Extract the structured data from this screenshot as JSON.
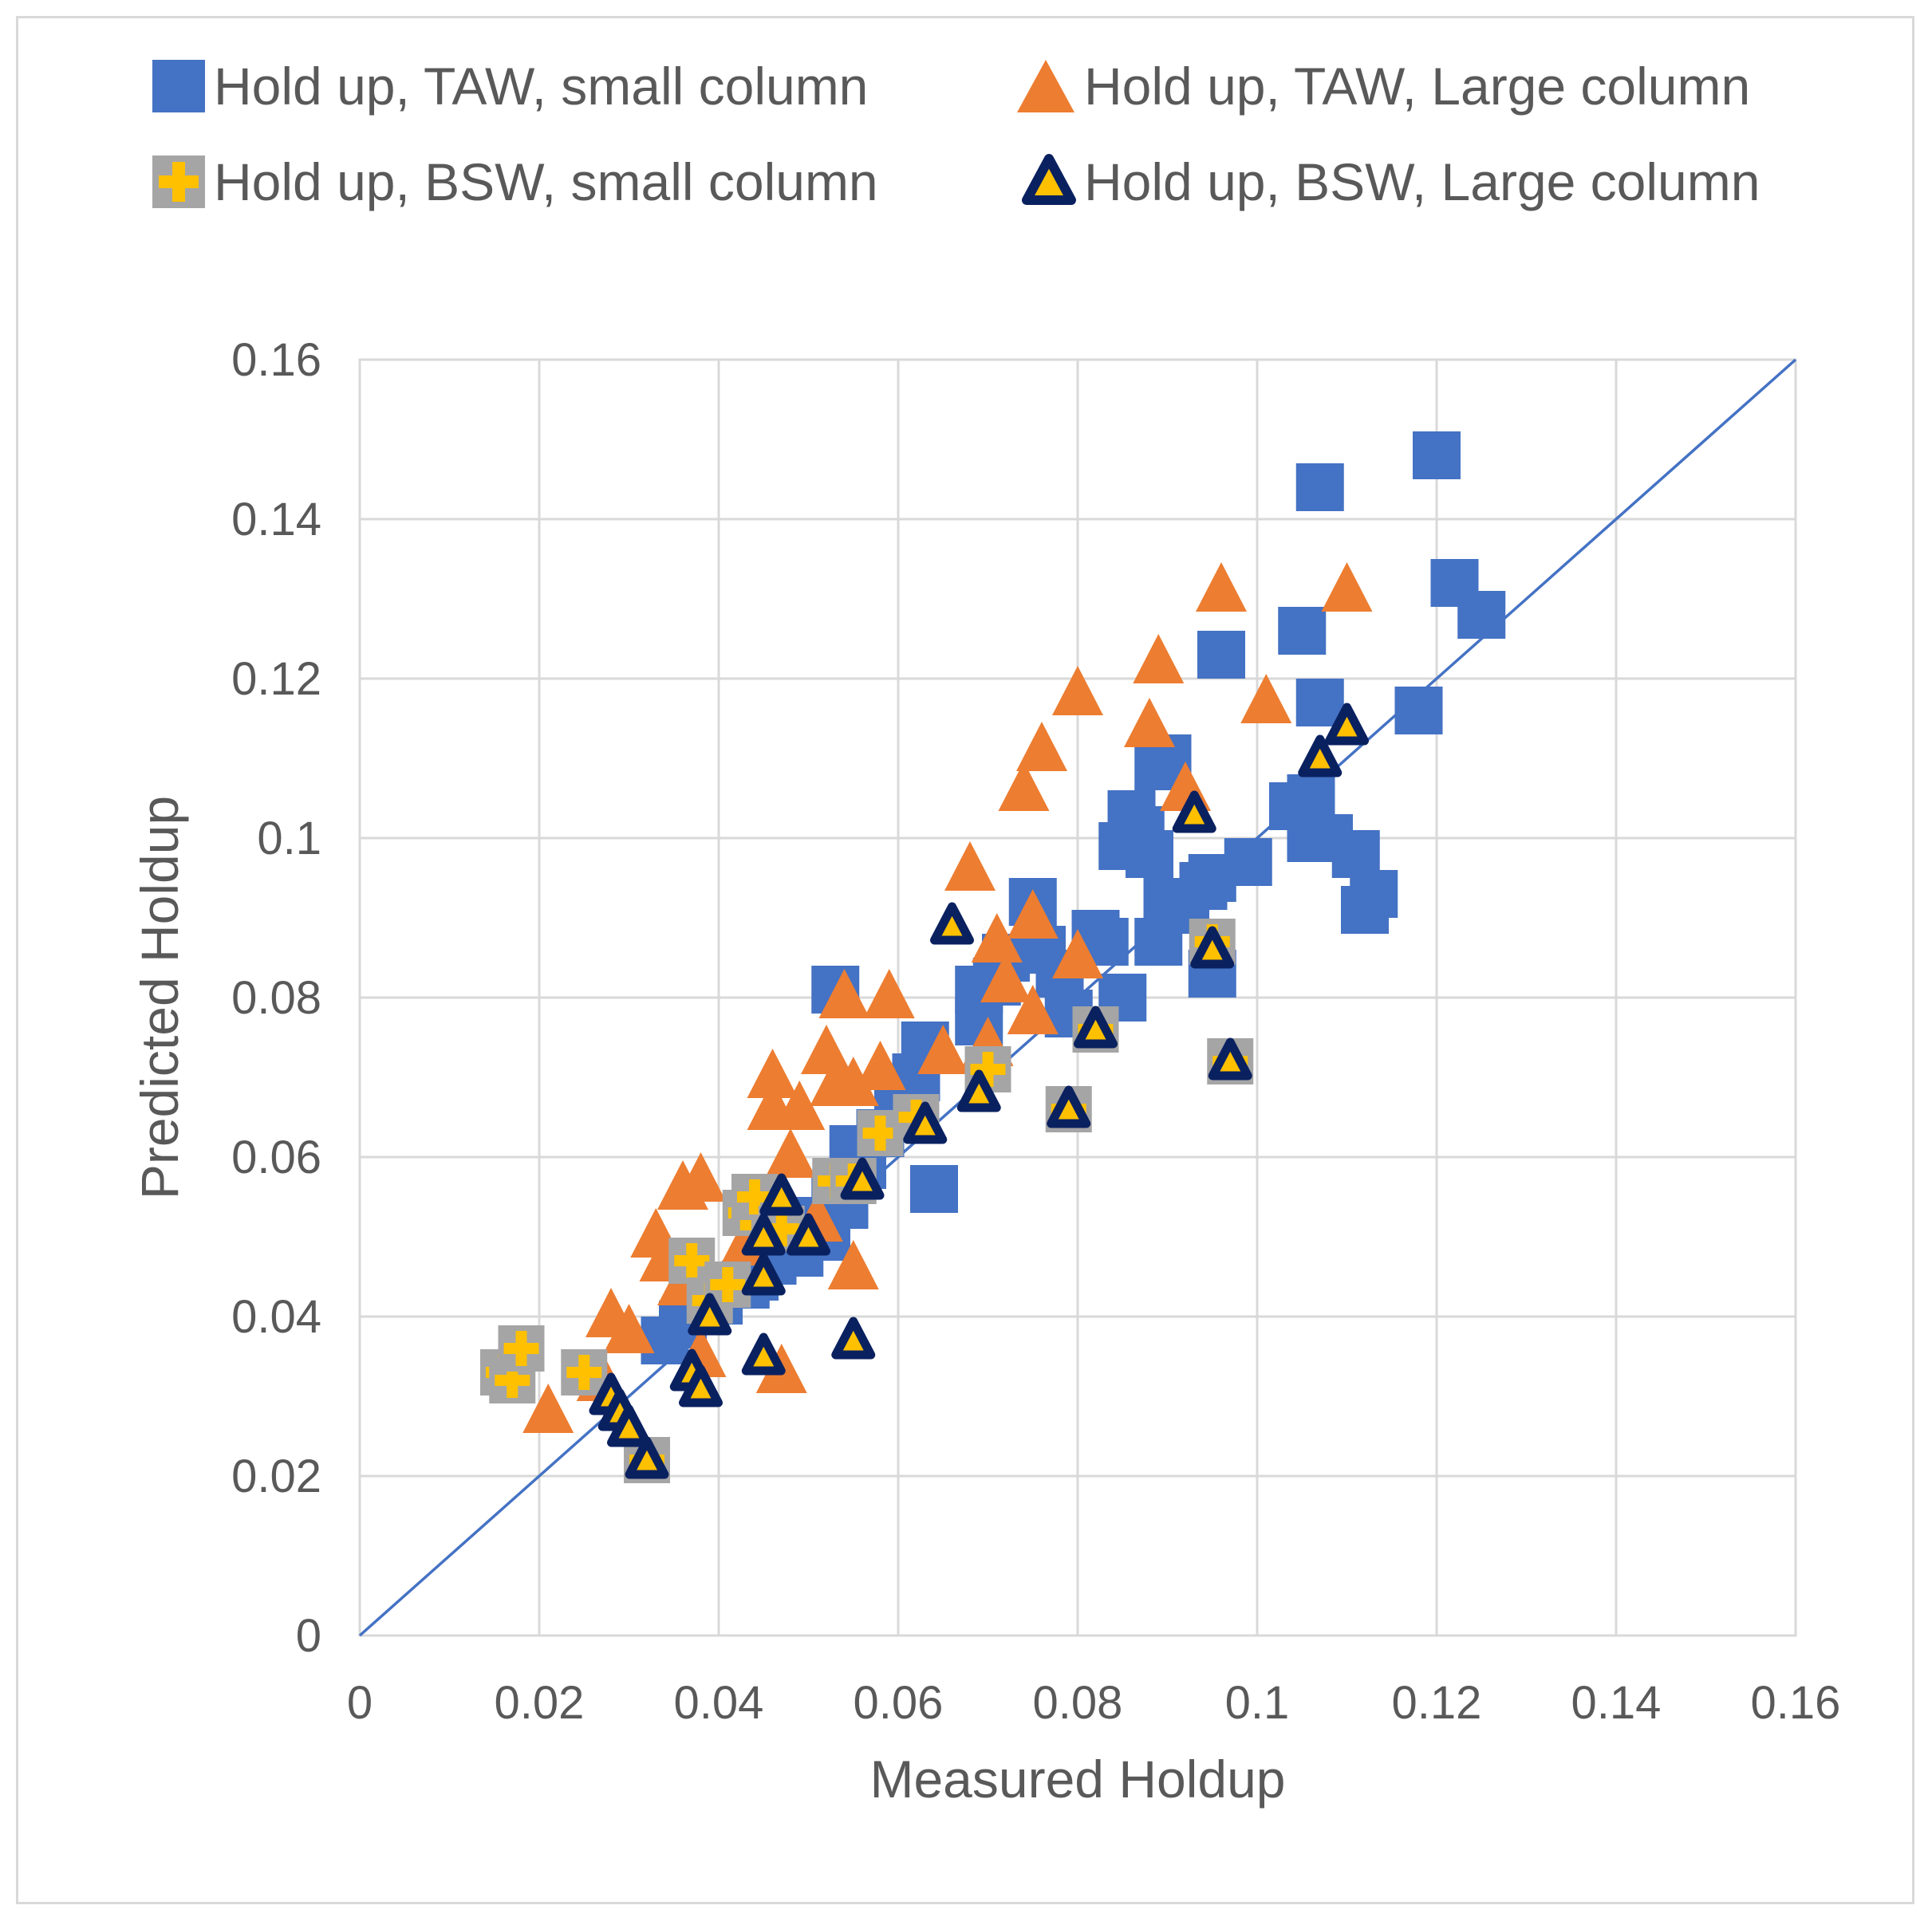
{
  "chart_data": {
    "type": "scatter",
    "title": "",
    "xlabel": "Measured  Holdup",
    "ylabel": "Predicted Holdup",
    "xlim": [
      0,
      0.16
    ],
    "ylim": [
      0,
      0.16
    ],
    "xticks": [
      "0",
      "0.02",
      "0.04",
      "0.06",
      "0.08",
      "0.1",
      "0.12",
      "0.14",
      "0.16"
    ],
    "yticks": [
      "0",
      "0.02",
      "0.04",
      "0.06",
      "0.08",
      "0.1",
      "0.12",
      "0.14",
      "0.16"
    ],
    "grid": true,
    "legend_position": "top",
    "reference_line": {
      "name": "y = x",
      "x": [
        0,
        0.16
      ],
      "y": [
        0,
        0.16
      ],
      "color": "#4472c4"
    },
    "series": [
      {
        "name": "Hold up, TAW, small column",
        "marker": "square",
        "color": "#4472c4",
        "points": [
          [
            0.034,
            0.037
          ],
          [
            0.036,
            0.039
          ],
          [
            0.04,
            0.042
          ],
          [
            0.043,
            0.044
          ],
          [
            0.044,
            0.045
          ],
          [
            0.046,
            0.047
          ],
          [
            0.047,
            0.05
          ],
          [
            0.049,
            0.048
          ],
          [
            0.05,
            0.052
          ],
          [
            0.052,
            0.05
          ],
          [
            0.053,
            0.055
          ],
          [
            0.054,
            0.054
          ],
          [
            0.055,
            0.061
          ],
          [
            0.056,
            0.059
          ],
          [
            0.058,
            0.063
          ],
          [
            0.06,
            0.066
          ],
          [
            0.061,
            0.068
          ],
          [
            0.062,
            0.07
          ],
          [
            0.063,
            0.074
          ],
          [
            0.064,
            0.056
          ],
          [
            0.053,
            0.081
          ],
          [
            0.069,
            0.081
          ],
          [
            0.069,
            0.077
          ],
          [
            0.071,
            0.082
          ],
          [
            0.072,
            0.085
          ],
          [
            0.075,
            0.092
          ],
          [
            0.076,
            0.086
          ],
          [
            0.078,
            0.083
          ],
          [
            0.079,
            0.078
          ],
          [
            0.082,
            0.088
          ],
          [
            0.083,
            0.087
          ],
          [
            0.085,
            0.08
          ],
          [
            0.085,
            0.099
          ],
          [
            0.086,
            0.103
          ],
          [
            0.087,
            0.101
          ],
          [
            0.088,
            0.098
          ],
          [
            0.089,
            0.109
          ],
          [
            0.09,
            0.11
          ],
          [
            0.089,
            0.087
          ],
          [
            0.09,
            0.092
          ],
          [
            0.092,
            0.091
          ],
          [
            0.094,
            0.094
          ],
          [
            0.095,
            0.083
          ],
          [
            0.096,
            0.123
          ],
          [
            0.095,
            0.095
          ],
          [
            0.099,
            0.097
          ],
          [
            0.104,
            0.104
          ],
          [
            0.105,
            0.126
          ],
          [
            0.106,
            0.1
          ],
          [
            0.107,
            0.117
          ],
          [
            0.106,
            0.105
          ],
          [
            0.108,
            0.1
          ],
          [
            0.107,
            0.144
          ],
          [
            0.111,
            0.098
          ],
          [
            0.112,
            0.091
          ],
          [
            0.113,
            0.093
          ],
          [
            0.118,
            0.116
          ],
          [
            0.12,
            0.148
          ],
          [
            0.122,
            0.132
          ],
          [
            0.125,
            0.128
          ]
        ]
      },
      {
        "name": "Hold up, TAW, Large column",
        "marker": "triangle",
        "color": "#ed7d31",
        "points": [
          [
            0.021,
            0.028
          ],
          [
            0.027,
            0.032
          ],
          [
            0.028,
            0.04
          ],
          [
            0.03,
            0.038
          ],
          [
            0.033,
            0.05
          ],
          [
            0.034,
            0.047
          ],
          [
            0.036,
            0.044
          ],
          [
            0.036,
            0.056
          ],
          [
            0.038,
            0.057
          ],
          [
            0.038,
            0.035
          ],
          [
            0.043,
            0.049
          ],
          [
            0.046,
            0.07
          ],
          [
            0.046,
            0.066
          ],
          [
            0.047,
            0.033
          ],
          [
            0.048,
            0.06
          ],
          [
            0.049,
            0.066
          ],
          [
            0.051,
            0.052
          ],
          [
            0.052,
            0.073
          ],
          [
            0.053,
            0.069
          ],
          [
            0.054,
            0.08
          ],
          [
            0.055,
            0.069
          ],
          [
            0.055,
            0.046
          ],
          [
            0.058,
            0.071
          ],
          [
            0.059,
            0.08
          ],
          [
            0.065,
            0.073
          ],
          [
            0.068,
            0.096
          ],
          [
            0.07,
            0.074
          ],
          [
            0.071,
            0.087
          ],
          [
            0.072,
            0.082
          ],
          [
            0.074,
            0.106
          ],
          [
            0.075,
            0.09
          ],
          [
            0.075,
            0.078
          ],
          [
            0.076,
            0.111
          ],
          [
            0.08,
            0.085
          ],
          [
            0.08,
            0.118
          ],
          [
            0.088,
            0.114
          ],
          [
            0.089,
            0.122
          ],
          [
            0.092,
            0.106
          ],
          [
            0.096,
            0.131
          ],
          [
            0.101,
            0.117
          ],
          [
            0.11,
            0.131
          ]
        ]
      },
      {
        "name": "Hold up, BSW, small column",
        "marker": "plus",
        "color": "#ffc000",
        "border": "#a5a5a5",
        "points": [
          [
            0.016,
            0.033
          ],
          [
            0.017,
            0.032
          ],
          [
            0.018,
            0.036
          ],
          [
            0.025,
            0.033
          ],
          [
            0.032,
            0.022
          ],
          [
            0.037,
            0.047
          ],
          [
            0.039,
            0.042
          ],
          [
            0.041,
            0.044
          ],
          [
            0.043,
            0.053
          ],
          [
            0.044,
            0.055
          ],
          [
            0.047,
            0.051
          ],
          [
            0.053,
            0.057
          ],
          [
            0.055,
            0.057
          ],
          [
            0.058,
            0.063
          ],
          [
            0.062,
            0.065
          ],
          [
            0.07,
            0.071
          ],
          [
            0.079,
            0.066
          ],
          [
            0.082,
            0.076
          ],
          [
            0.095,
            0.087
          ],
          [
            0.097,
            0.072
          ]
        ]
      },
      {
        "name": "Hold up, BSW, Large column",
        "marker": "triangle-outline",
        "color": "#0a2160",
        "fill": "#ffc000",
        "points": [
          [
            0.028,
            0.03
          ],
          [
            0.029,
            0.028
          ],
          [
            0.03,
            0.026
          ],
          [
            0.032,
            0.022
          ],
          [
            0.037,
            0.033
          ],
          [
            0.038,
            0.031
          ],
          [
            0.039,
            0.04
          ],
          [
            0.045,
            0.045
          ],
          [
            0.045,
            0.05
          ],
          [
            0.045,
            0.035
          ],
          [
            0.047,
            0.055
          ],
          [
            0.05,
            0.05
          ],
          [
            0.055,
            0.037
          ],
          [
            0.056,
            0.057
          ],
          [
            0.063,
            0.064
          ],
          [
            0.066,
            0.089
          ],
          [
            0.069,
            0.068
          ],
          [
            0.079,
            0.066
          ],
          [
            0.082,
            0.076
          ],
          [
            0.093,
            0.103
          ],
          [
            0.095,
            0.086
          ],
          [
            0.097,
            0.072
          ],
          [
            0.107,
            0.11
          ],
          [
            0.11,
            0.114
          ]
        ]
      }
    ]
  }
}
